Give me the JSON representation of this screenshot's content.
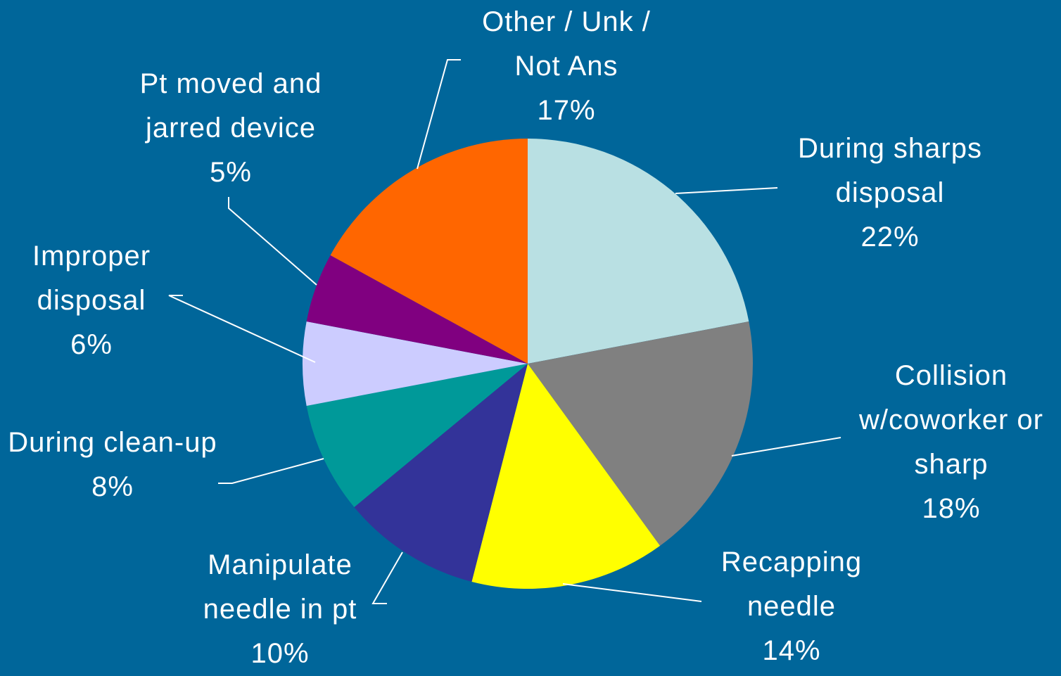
{
  "chart_data": {
    "type": "pie",
    "categories": [
      "During sharps disposal",
      "Collision w/coworker or sharp",
      "Recapping needle",
      "Manipulate needle in pt",
      "During clean-up",
      "Improper disposal",
      "Pt moved and jarred device",
      "Other / Unk / Not Ans"
    ],
    "values": [
      22,
      18,
      14,
      10,
      8,
      6,
      5,
      17
    ],
    "value_labels": [
      "22%",
      "18%",
      "14%",
      "10%",
      "8%",
      "6%",
      "5%",
      "17%"
    ],
    "colors": [
      "#b9e0e3",
      "#808080",
      "#ffff00",
      "#333399",
      "#009999",
      "#ccccff",
      "#800080",
      "#ff6600"
    ]
  }
}
